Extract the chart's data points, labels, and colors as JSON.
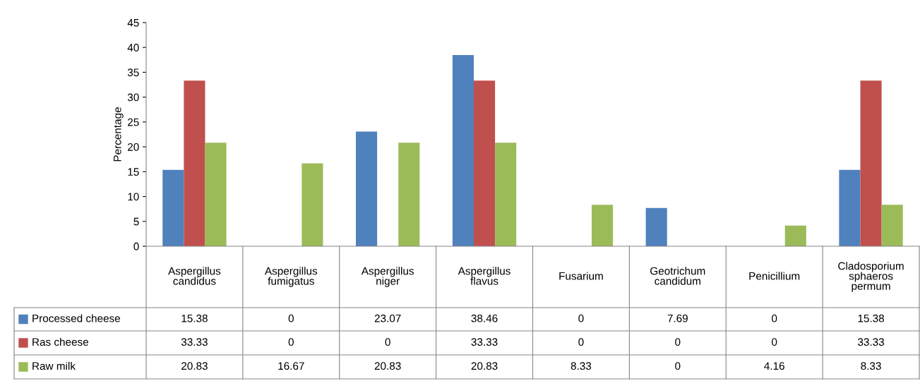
{
  "chart_data": {
    "type": "bar",
    "ylabel": "Percentage",
    "categories": [
      "Aspergillus candidus",
      "Aspergillus fumigatus",
      "Aspergillus niger",
      "Aspergillus flavus",
      "Fusarium",
      "Geotrichum candidum",
      "Penicillium",
      "Cladosporium sphaeros permum"
    ],
    "series": [
      {
        "name": "Processed cheese",
        "color": "#4f81bd",
        "values": [
          15.38,
          0,
          23.07,
          38.46,
          0,
          7.69,
          0,
          15.38
        ]
      },
      {
        "name": "Ras cheese",
        "color": "#c0504d",
        "values": [
          33.33,
          0,
          0,
          33.33,
          0,
          0,
          0,
          33.33
        ]
      },
      {
        "name": "Raw milk",
        "color": "#9bbb59",
        "values": [
          20.83,
          16.67,
          20.83,
          20.83,
          8.33,
          0,
          4.16,
          8.33
        ]
      }
    ],
    "ylim": [
      0,
      45
    ],
    "yticks": [
      0,
      5,
      10,
      15,
      20,
      25,
      30,
      35,
      40,
      45
    ],
    "grid": false,
    "legend": "bottom",
    "data_labels": true
  }
}
